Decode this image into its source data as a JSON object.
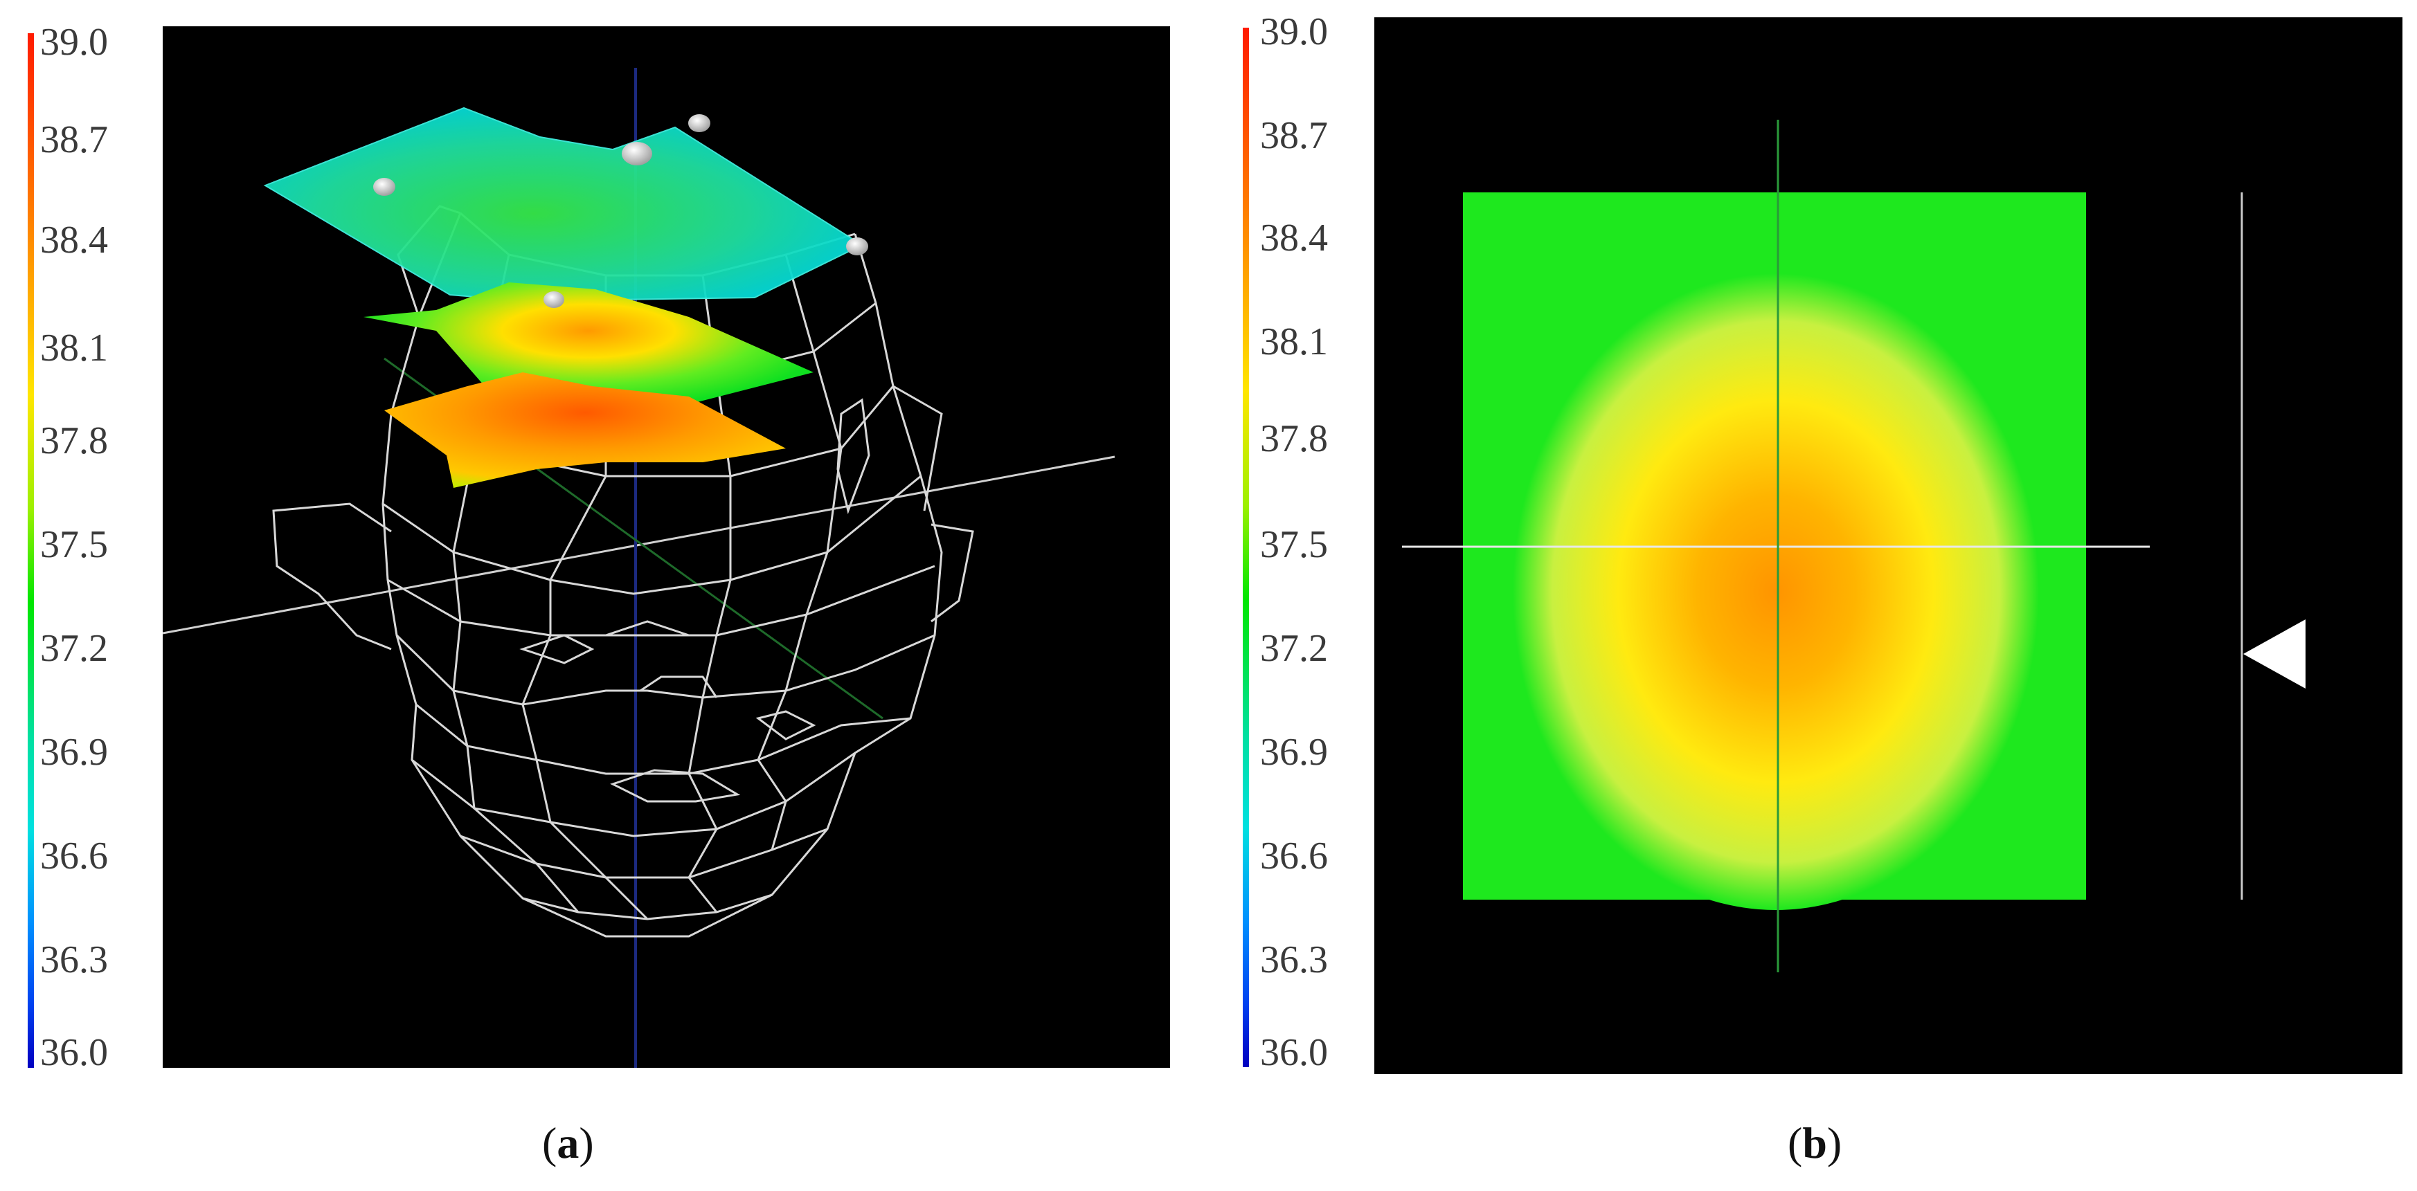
{
  "panels": [
    {
      "id": "a",
      "caption_open": "(",
      "caption_letter": "a",
      "caption_close": ")",
      "colorbar": {
        "min": 36.0,
        "max": 39.0,
        "ticks": [
          "39.0",
          "38.7",
          "38.4",
          "38.1",
          "37.8",
          "37.5",
          "37.2",
          "36.9",
          "36.6",
          "36.3",
          "36.0"
        ],
        "gradient_colors": [
          "#ff1a00",
          "#ff8c00",
          "#ffe600",
          "#a6f000",
          "#00e600",
          "#00e0a0",
          "#00e0e0",
          "#00a0ff",
          "#0050ff",
          "#0000c0"
        ]
      },
      "view": "3D wireframe head model with three temperature layers and five electrode markers"
    },
    {
      "id": "b",
      "caption_open": "(",
      "caption_letter": "b",
      "caption_close": ")",
      "colorbar": {
        "min": 36.0,
        "max": 39.0,
        "ticks": [
          "39.0",
          "38.7",
          "38.4",
          "38.1",
          "37.8",
          "37.5",
          "37.2",
          "36.9",
          "36.6",
          "36.3",
          "36.0"
        ],
        "gradient_colors": [
          "#ff1a00",
          "#ff8c00",
          "#ffe600",
          "#a6f000",
          "#00e600",
          "#00e0a0",
          "#00e0e0",
          "#00a0ff",
          "#0050ff",
          "#0000c0"
        ]
      },
      "view": "Top-down 2D temperature slice with crosshair and depth slider"
    }
  ],
  "colors": {
    "background": "#000000",
    "wire": "#d8d8d8",
    "green": "#1ee81e",
    "hot": "#ff9a00"
  }
}
